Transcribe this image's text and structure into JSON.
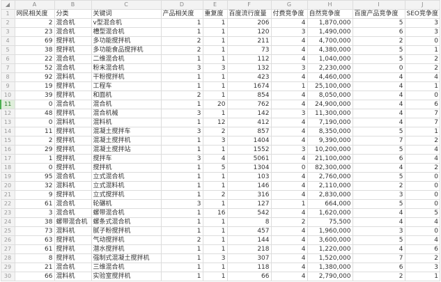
{
  "columns": [
    "A",
    "B",
    "C",
    "D",
    "E",
    "F",
    "G",
    "H",
    "I",
    "J"
  ],
  "selected_row": 11,
  "header": [
    "网民相关度",
    "分类",
    "关键词",
    "产品相关度",
    "重复度",
    "百度流行度量",
    "付费竞争度",
    "自然竞争度",
    "百度产品竞争度",
    "SEO竞争度"
  ],
  "rows": [
    [
      "2",
      "混合机",
      "v型混合机",
      "1",
      "1",
      "206",
      "4",
      "1,870,000",
      "5",
      "3"
    ],
    [
      "23",
      "混合机",
      "槽型混合机",
      "1",
      "1",
      "120",
      "3",
      "1,490,000",
      "6",
      "3"
    ],
    [
      "69",
      "搅拌机",
      "多功能搅拌机",
      "2",
      "1",
      "211",
      "4",
      "4,700,000",
      "2",
      "0"
    ],
    [
      "38",
      "搅拌机",
      "多功能食品搅拌机",
      "2",
      "1",
      "73",
      "4",
      "4,380,000",
      "5",
      "1"
    ],
    [
      "22",
      "混合机",
      "二维混合机",
      "1",
      "1",
      "112",
      "4",
      "1,040,000",
      "5",
      "2"
    ],
    [
      "52",
      "混合机",
      "粉末混合机",
      "3",
      "3",
      "132",
      "3",
      "2,230,000",
      "0",
      "2"
    ],
    [
      "92",
      "混料机",
      "干粉搅拌机",
      "1",
      "1",
      "423",
      "4",
      "4,460,000",
      "4",
      "4"
    ],
    [
      "19",
      "搅拌机",
      "工程车",
      "1",
      "1",
      "1674",
      "1",
      "25,100,000",
      "4",
      "1"
    ],
    [
      "39",
      "搅拌机",
      "和面机",
      "2",
      "1",
      "854",
      "4",
      "8,050,000",
      "4",
      "0"
    ],
    [
      "0",
      "混合机",
      "混合机",
      "1",
      "20",
      "762",
      "4",
      "24,900,000",
      "4",
      "6"
    ],
    [
      "48",
      "搅拌机",
      "混合机械",
      "3",
      "1",
      "142",
      "3",
      "11,300,000",
      "4",
      "7"
    ],
    [
      "0",
      "混料机",
      "混料机",
      "1",
      "12",
      "412",
      "4",
      "7,190,000",
      "4",
      "7"
    ],
    [
      "11",
      "搅拌机",
      "混凝土搅拌车",
      "3",
      "2",
      "857",
      "4",
      "8,350,000",
      "5",
      "1"
    ],
    [
      "2",
      "搅拌机",
      "混凝土搅拌机",
      "1",
      "3",
      "1404",
      "4",
      "9,390,000",
      "7",
      "2"
    ],
    [
      "29",
      "搅拌机",
      "混凝土搅拌站",
      "1",
      "1",
      "1552",
      "3",
      "10,200,000",
      "5",
      "4"
    ],
    [
      "1",
      "搅拌机",
      "搅拌车",
      "3",
      "4",
      "5061",
      "4",
      "21,100,000",
      "6",
      "4"
    ],
    [
      "0",
      "搅拌机",
      "搅拌机",
      "1",
      "5",
      "1304",
      "0",
      "82,300,000",
      "4",
      "2"
    ],
    [
      "95",
      "混合机",
      "立式混合机",
      "1",
      "1",
      "103",
      "4",
      "2,760,000",
      "5",
      "0"
    ],
    [
      "32",
      "混料机",
      "立式混料机",
      "1",
      "1",
      "146",
      "4",
      "2,110,000",
      "2",
      "0"
    ],
    [
      "9",
      "搅拌机",
      "立式搅拌机",
      "1",
      "2",
      "316",
      "4",
      "2,830,000",
      "3",
      "0"
    ],
    [
      "61",
      "混合机",
      "轮碾机",
      "3",
      "1",
      "127",
      "1",
      "664,000",
      "5",
      "0"
    ],
    [
      "3",
      "混合机",
      "螺带混合机",
      "1",
      "16",
      "542",
      "4",
      "1,620,000",
      "4",
      "5"
    ],
    [
      "38",
      "螺带混合机",
      "螺条式混合机",
      "1",
      "1",
      "8",
      "2",
      "75,500",
      "4",
      "4"
    ],
    [
      "73",
      "混料机",
      "腻子粉搅拌机",
      "1",
      "1",
      "457",
      "4",
      "1,960,000",
      "3",
      "0"
    ],
    [
      "63",
      "搅拌机",
      "气动搅拌机",
      "2",
      "1",
      "144",
      "4",
      "3,600,000",
      "5",
      "4"
    ],
    [
      "61",
      "搅拌机",
      "潜水搅拌机",
      "1",
      "1",
      "218",
      "4",
      "1,220,000",
      "4",
      "6"
    ],
    [
      "8",
      "搅拌机",
      "强制式混凝土搅拌机",
      "1",
      "3",
      "307",
      "4",
      "1,520,000",
      "7",
      "2"
    ],
    [
      "21",
      "混合机",
      "三维混合机",
      "1",
      "1",
      "118",
      "4",
      "1,380,000",
      "6",
      "3"
    ],
    [
      "66",
      "混料机",
      "实验室搅拌机",
      "1",
      "1",
      "66",
      "4",
      "2,790,000",
      "2",
      "1"
    ]
  ]
}
